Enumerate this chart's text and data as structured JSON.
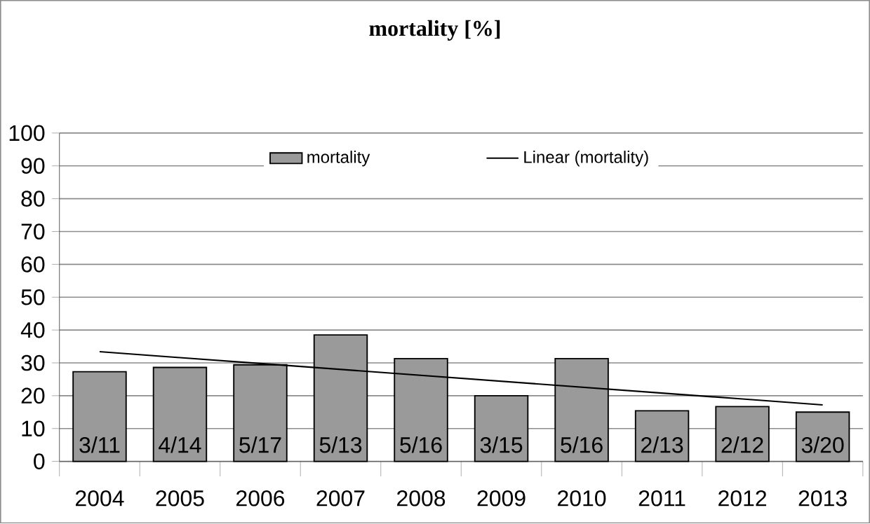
{
  "chart_data": {
    "type": "bar",
    "title": "mortality [%]",
    "categories": [
      "2004",
      "2005",
      "2006",
      "2007",
      "2008",
      "2009",
      "2010",
      "2011",
      "2012",
      "2013"
    ],
    "series": [
      {
        "name": "mortality",
        "color": "#9a9a9a",
        "values": [
          27.3,
          28.6,
          29.4,
          38.5,
          31.3,
          20,
          31.3,
          15.4,
          16.7,
          15
        ]
      },
      {
        "name": "Linear (mortality)",
        "type": "line",
        "color": "#000000",
        "values": [
          33.4,
          31.6,
          29.8,
          28.0,
          26.2,
          24.4,
          22.6,
          20.8,
          19.0,
          17.2
        ]
      }
    ],
    "annotations": [
      "3/11",
      "4/14",
      "5/17",
      "5/13",
      "5/16",
      "3/15",
      "5/16",
      "2/13",
      "2/12",
      "3/20"
    ],
    "ylim": [
      0,
      100
    ],
    "yticks": [
      0,
      10,
      20,
      30,
      40,
      50,
      60,
      70,
      80,
      90,
      100
    ],
    "grid": "y",
    "legend": "top"
  }
}
